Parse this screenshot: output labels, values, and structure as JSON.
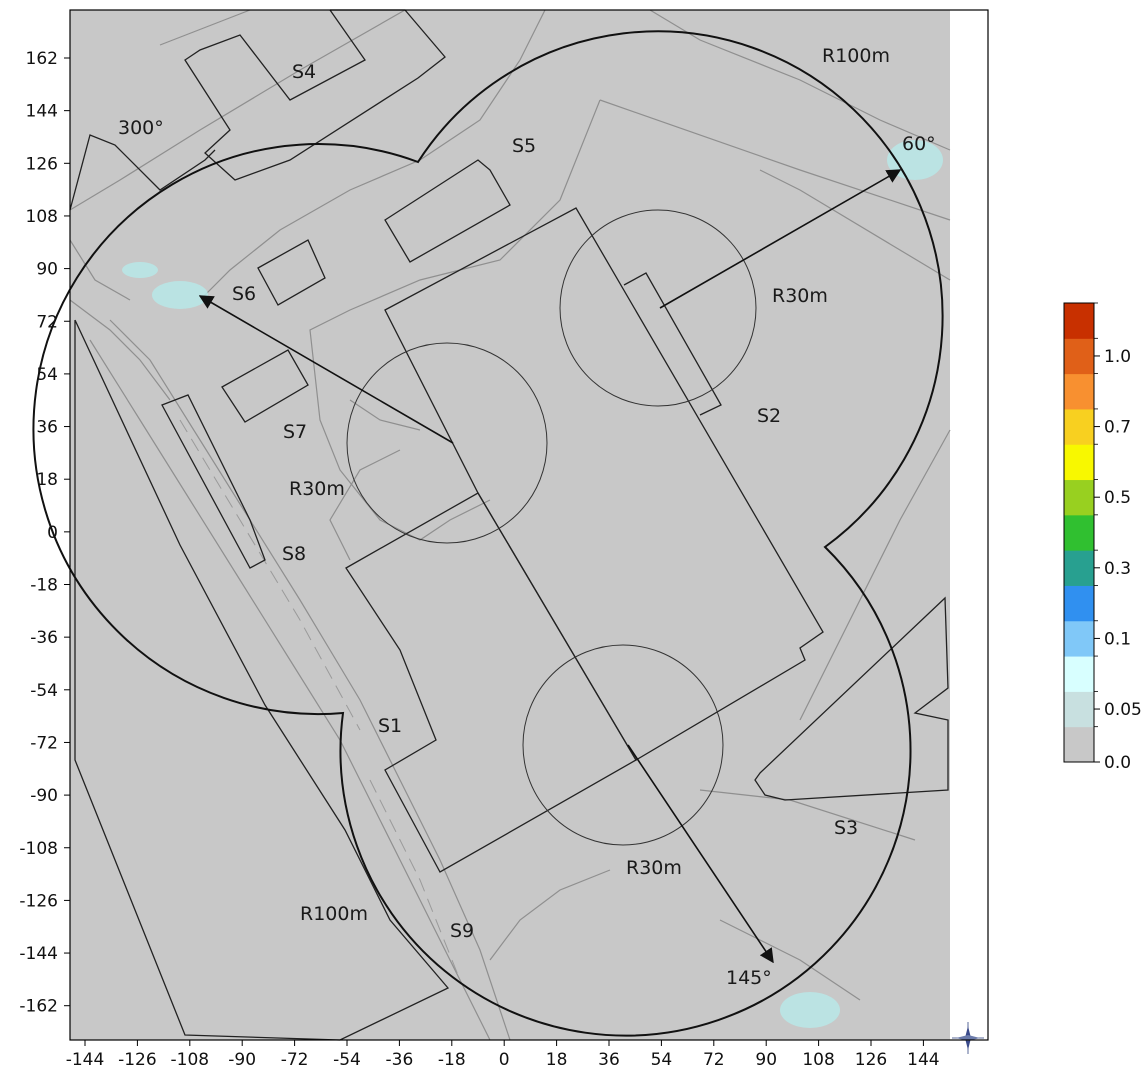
{
  "map": {
    "x_ticks": [
      "-144",
      "-126",
      "-108",
      "-90",
      "-72",
      "-54",
      "-36",
      "-18",
      "0",
      "18",
      "36",
      "54",
      "72",
      "90",
      "108",
      "126",
      "144"
    ],
    "y_ticks": [
      "162",
      "144",
      "126",
      "108",
      "90",
      "72",
      "54",
      "36",
      "18",
      "0",
      "-18",
      "-36",
      "-54",
      "-72",
      "-90",
      "-108",
      "-126",
      "-144",
      "-162"
    ],
    "background_color": "#c8c8c8",
    "labels": {
      "S1": "S1",
      "S2": "S2",
      "S3": "S3",
      "S4": "S4",
      "S5": "S5",
      "S6": "S6",
      "S7": "S7",
      "S8": "S8",
      "S9": "S9",
      "r100_top": "R100m",
      "r100_bottom": "R100m",
      "r30_top": "R30m",
      "r30_left": "R30m",
      "r30_bottom": "R30m",
      "angle_300": "300°",
      "angle_60": "60°",
      "angle_145": "145°"
    },
    "compass_icon": "compass-rose-icon"
  },
  "colorbar": {
    "ticks": [
      "1.0",
      "0.7",
      "0.5",
      "0.3",
      "0.1",
      "0.05",
      "0.0"
    ],
    "colors": [
      "#c8c8c8",
      "#c8e0e0",
      "#d8ffff",
      "#80c8f8",
      "#3090f0",
      "#28a090",
      "#30c030",
      "#98d020",
      "#f8f800",
      "#f8d020",
      "#f89030",
      "#e06018",
      "#c83000"
    ]
  }
}
